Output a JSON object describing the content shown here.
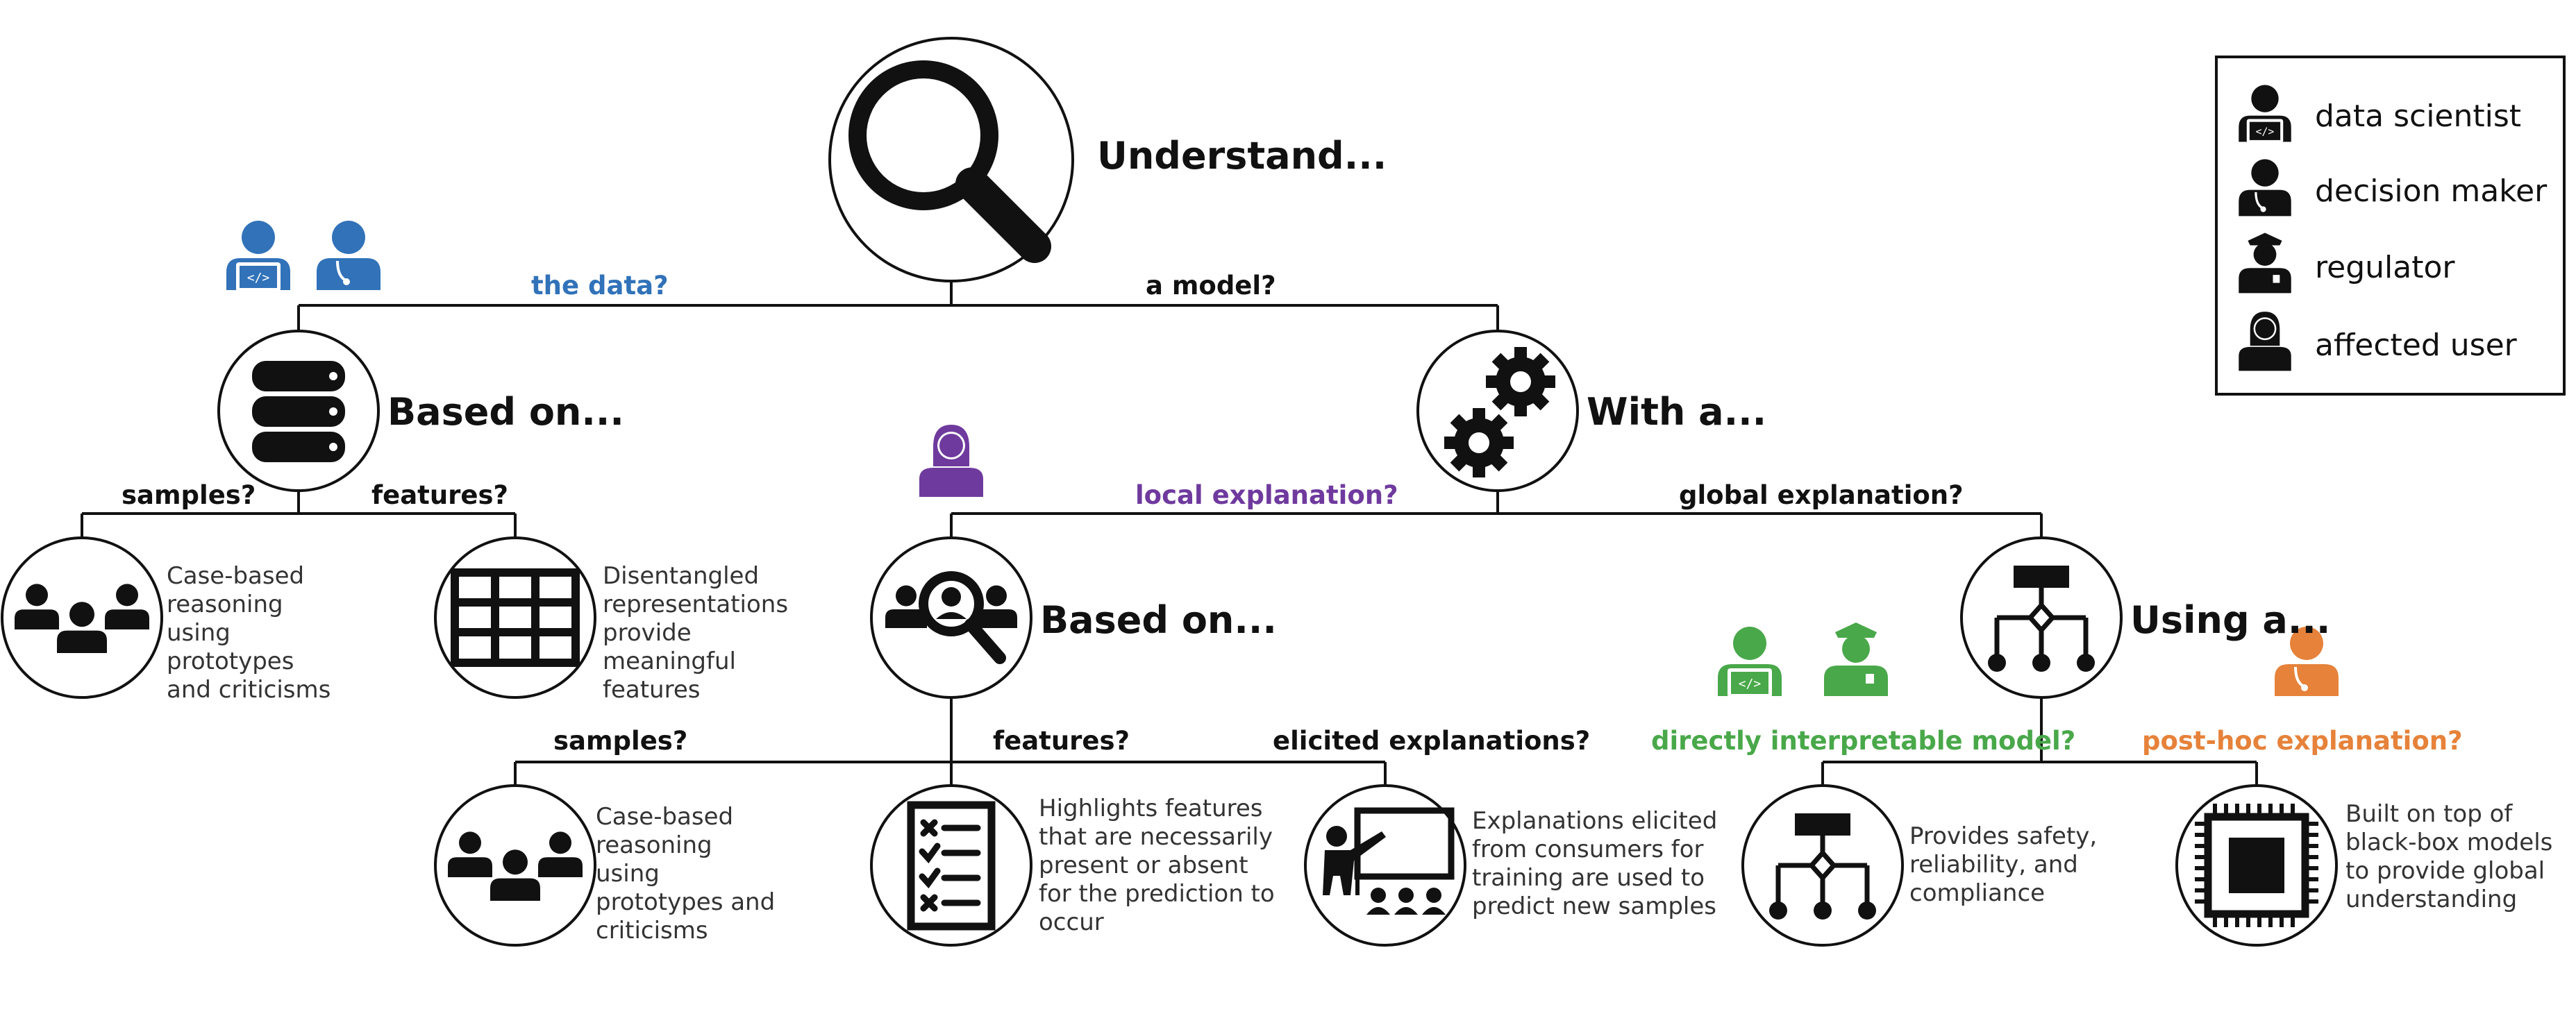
{
  "colors": {
    "line": "#111111",
    "data_scientist": "#3172b9",
    "decision_maker": "#3172b9",
    "local": "#6f3a9e",
    "interpretable": "#49a84a",
    "posthoc": "#e6823a"
  },
  "root": {
    "label": "Understand...",
    "icon": "magnifier-icon"
  },
  "branches": {
    "data": {
      "question": "the data?",
      "personas": [
        "data-scientist-icon",
        "decision-maker-icon"
      ],
      "node": {
        "label": "Based on...",
        "icon": "database-icon"
      },
      "samples": {
        "question": "samples?",
        "icon": "people-group-icon",
        "description": "Case-based reasoning using prototypes and criticisms"
      },
      "features": {
        "question": "features?",
        "icon": "grid-table-icon",
        "description": "Disentangled representations provide meaningful features"
      }
    },
    "model": {
      "question": "a model?",
      "node": {
        "label": "With a...",
        "icon": "gears-icon"
      },
      "local": {
        "question": "local explanation?",
        "personas": [
          "affected-user-icon"
        ],
        "node": {
          "label": "Based on...",
          "icon": "group-search-icon"
        },
        "samples": {
          "question": "samples?",
          "icon": "people-group-icon",
          "description": "Case-based reasoning using prototypes and criticisms"
        },
        "features": {
          "question": "features?",
          "icon": "checklist-icon",
          "description": "Highlights features that are necessarily present or absent for the prediction to occur"
        },
        "elicited": {
          "question": "elicited explanations?",
          "icon": "teacher-board-icon",
          "description": "Explanations elicited from consumers for training are used to predict new samples"
        }
      },
      "global": {
        "question": "global explanation?",
        "node": {
          "label": "Using a...",
          "icon": "flowchart-icon"
        },
        "interpretable": {
          "question": "directly interpretable model?",
          "personas": [
            "data-scientist-icon",
            "regulator-icon"
          ],
          "icon": "flowchart-icon",
          "description": "Provides safety, reliability, and compliance"
        },
        "posthoc": {
          "question": "post-hoc explanation?",
          "personas": [
            "decision-maker-icon"
          ],
          "icon": "chip-icon",
          "description": "Built on top of black-box models to provide global understanding"
        }
      }
    }
  },
  "legend": {
    "items": [
      {
        "label": "data scientist",
        "icon": "data-scientist-icon"
      },
      {
        "label": "decision maker",
        "icon": "decision-maker-icon"
      },
      {
        "label": "regulator",
        "icon": "regulator-icon"
      },
      {
        "label": "affected user",
        "icon": "affected-user-icon"
      }
    ]
  }
}
